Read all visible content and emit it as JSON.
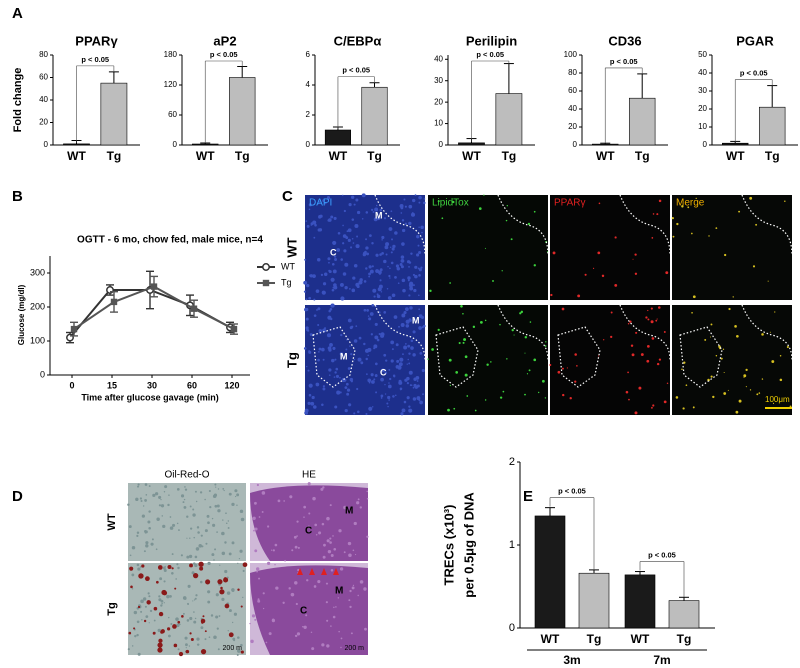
{
  "chart_data": [
    {
      "type": "bar",
      "title": "PPARγ",
      "y_label": "Fold change",
      "categories": [
        "WT",
        "Tg"
      ],
      "values": [
        1,
        55
      ],
      "errors": [
        3,
        10
      ],
      "colors": [
        "#1a1a1a",
        "#bdbdbd"
      ],
      "ylim": [
        0,
        80
      ],
      "yticks": [
        0,
        20,
        40,
        60,
        80
      ],
      "annotation": "p < 0.05"
    },
    {
      "type": "bar",
      "title": "aP2",
      "categories": [
        "WT",
        "Tg"
      ],
      "values": [
        2,
        135
      ],
      "errors": [
        2,
        22
      ],
      "colors": [
        "#1a1a1a",
        "#bdbdbd"
      ],
      "ylim": [
        0,
        180
      ],
      "yticks": [
        0,
        60,
        120,
        180
      ],
      "annotation": "p < 0.05"
    },
    {
      "type": "bar",
      "title": "C/EBPα",
      "categories": [
        "WT",
        "Tg"
      ],
      "values": [
        1.0,
        3.85
      ],
      "errors": [
        0.2,
        0.3
      ],
      "colors": [
        "#1a1a1a",
        "#bdbdbd"
      ],
      "ylim": [
        0,
        6
      ],
      "yticks": [
        0,
        2,
        4,
        6
      ],
      "annotation": "p < 0.05"
    },
    {
      "type": "bar",
      "title": "Perilipin",
      "categories": [
        "WT",
        "Tg"
      ],
      "values": [
        1,
        24
      ],
      "errors": [
        2,
        14
      ],
      "colors": [
        "#1a1a1a",
        "#bdbdbd"
      ],
      "ylim": [
        0,
        42
      ],
      "yticks": [
        0,
        10,
        20,
        30,
        40
      ],
      "annotation": "p < 0.05"
    },
    {
      "type": "bar",
      "title": "CD36",
      "categories": [
        "WT",
        "Tg"
      ],
      "values": [
        1,
        52
      ],
      "errors": [
        1,
        27
      ],
      "colors": [
        "#1a1a1a",
        "#bdbdbd"
      ],
      "ylim": [
        0,
        100
      ],
      "yticks": [
        0,
        20,
        40,
        60,
        80,
        100
      ],
      "annotation": "p < 0.05"
    },
    {
      "type": "bar",
      "title": "PGAR",
      "categories": [
        "WT",
        "Tg"
      ],
      "values": [
        1,
        21
      ],
      "errors": [
        1,
        12
      ],
      "colors": [
        "#1a1a1a",
        "#bdbdbd"
      ],
      "ylim": [
        0,
        50
      ],
      "yticks": [
        0,
        10,
        20,
        30,
        40,
        50
      ],
      "annotation": "p < 0.05"
    },
    {
      "type": "line",
      "title": "OGTT - 6 mo, chow fed, male mice, n=4",
      "x_label": "Time after glucose gavage (min)",
      "y_label": "Glucose (mg/dl)",
      "categories": [
        "0",
        "15",
        "30",
        "60",
        "120"
      ],
      "ylim": [
        0,
        350
      ],
      "yticks": [
        0,
        100,
        200,
        300
      ],
      "series": [
        {
          "name": "WT",
          "color": "#333333",
          "marker": "circle",
          "values": [
            110,
            250,
            250,
            205,
            140
          ],
          "errors": [
            15,
            15,
            55,
            30,
            15
          ]
        },
        {
          "name": "Tg",
          "color": "#555555",
          "marker": "square",
          "values": [
            135,
            215,
            260,
            195,
            135
          ],
          "errors": [
            20,
            30,
            30,
            25,
            15
          ]
        }
      ]
    },
    {
      "type": "bar",
      "y_label": [
        "TRECs (x10³)",
        "per 0.5μg of DNA"
      ],
      "categories": [
        "3m",
        "7m"
      ],
      "ylim": [
        0,
        2
      ],
      "yticks": [
        0,
        1,
        2
      ],
      "annotations": [
        "p < 0.05",
        "p < 0.05"
      ],
      "series": [
        {
          "name": "WT",
          "color": "#1a1a1a",
          "values": [
            1.35,
            0.64
          ],
          "errors": [
            0.1,
            0.04
          ]
        },
        {
          "name": "Tg",
          "color": "#bdbdbd",
          "values": [
            0.66,
            0.33
          ],
          "errors": [
            0.04,
            0.04
          ]
        }
      ]
    }
  ],
  "figure": {
    "panel_labels": [
      "A",
      "B",
      "C",
      "D",
      "E"
    ],
    "panel_c": {
      "columns": [
        "DAPI",
        "LipidTox",
        "PPARγ",
        "Merge"
      ],
      "rows": [
        "WT",
        "Tg"
      ],
      "region_labels": [
        "M",
        "C",
        "M",
        "M",
        "C"
      ],
      "scale_bar": "100μm"
    },
    "panel_d": {
      "columns": [
        "Oil-Red-O",
        "HE"
      ],
      "rows": [
        "WT",
        "Tg"
      ],
      "region_labels": [
        "C",
        "M",
        "C",
        "M"
      ],
      "scale_bars": [
        "200 m",
        "200 m"
      ]
    }
  }
}
